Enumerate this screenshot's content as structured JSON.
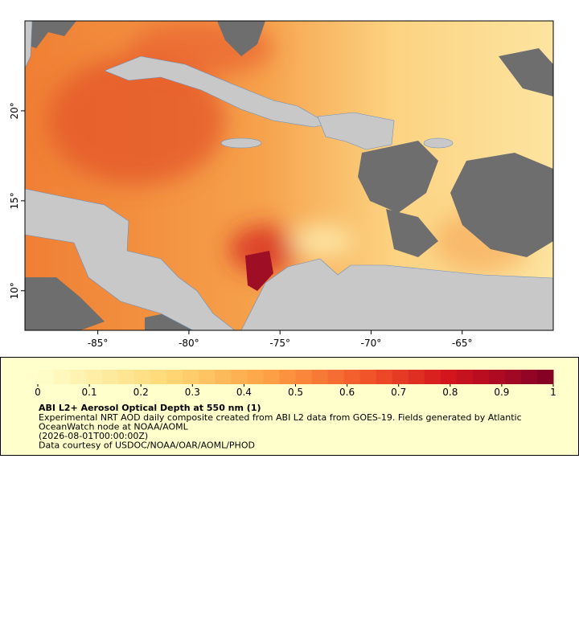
{
  "map": {
    "xlim": [
      -89,
      -60
    ],
    "ylim": [
      7.8,
      25
    ],
    "xticks": [
      {
        "value": -85,
        "label": "-85°"
      },
      {
        "value": -80,
        "label": "-80°"
      },
      {
        "value": -75,
        "label": "-75°"
      },
      {
        "value": -70,
        "label": "-70°"
      },
      {
        "value": -65,
        "label": "-65°"
      }
    ],
    "yticks": [
      {
        "value": 10,
        "label": "10°"
      },
      {
        "value": 15,
        "label": "15°"
      },
      {
        "value": 20,
        "label": "20°"
      }
    ]
  },
  "legend": {
    "clim": [
      0,
      1
    ],
    "ticks": [
      0,
      0.1,
      0.2,
      0.3,
      0.4,
      0.5,
      0.6,
      0.7,
      0.8,
      0.9,
      1
    ],
    "title": "ABI L2+ Aerosol Optical Depth at 550 nm (1)",
    "lines": [
      "Experimental NRT AOD daily composite created from ABI L2 data from GOES-19. Fields generated by Atlantic",
      "OceanWatch node at NOAA/AOML",
      "(2026-08-01T00:00:00Z)",
      "Data courtesy of USDOC/NOAA/OAR/AOML/PHOD"
    ]
  }
}
